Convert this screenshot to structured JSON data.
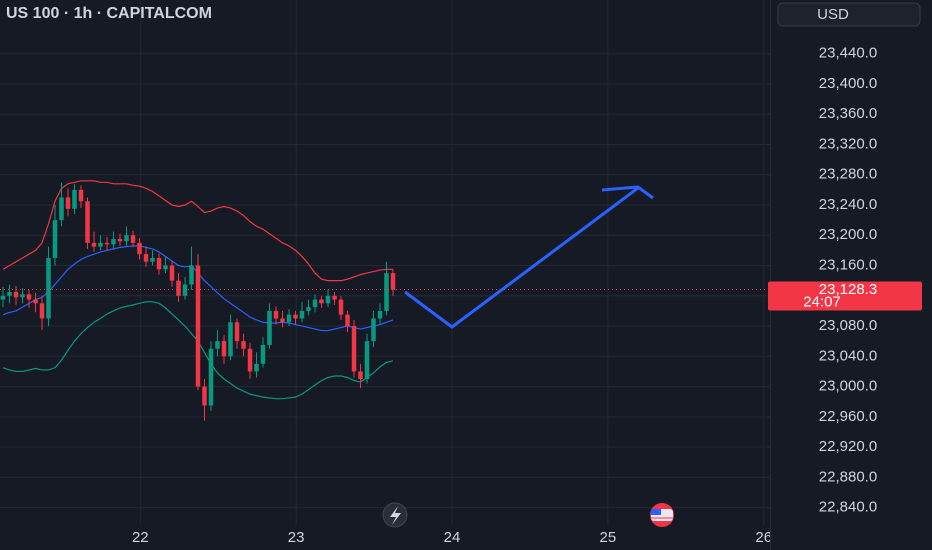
{
  "chart_data": {
    "type": "candlestick",
    "title": "US 100 · 1h · CAPITALCOM",
    "currency": "USD",
    "open": [
      23115,
      23120,
      23125,
      23118,
      23122,
      23115,
      23110,
      23090,
      23170,
      23220,
      23250,
      23235,
      23260,
      23245,
      23190,
      23185,
      23190,
      23188,
      23195,
      23192,
      23200,
      23190,
      23175,
      23165,
      23170,
      23155,
      23160,
      23140,
      23120,
      23135,
      23160,
      23000,
      22975,
      23050,
      23060,
      23040,
      23085,
      23060,
      23050,
      23020,
      23030,
      23055,
      23100,
      23090,
      23085,
      23095,
      23090,
      23100,
      23105,
      23115,
      23110,
      23120,
      23115,
      23095,
      23080,
      23020,
      23010,
      23060,
      23090,
      23100,
      23150
    ],
    "high": [
      23132,
      23135,
      23133,
      23130,
      23128,
      23124,
      23120,
      23185,
      23240,
      23270,
      23262,
      23268,
      23266,
      23250,
      23205,
      23200,
      23198,
      23205,
      23202,
      23212,
      23206,
      23196,
      23185,
      23180,
      23176,
      23172,
      23166,
      23150,
      23145,
      23185,
      23175,
      23010,
      23060,
      23075,
      23068,
      23095,
      23090,
      23070,
      23058,
      23045,
      23065,
      23110,
      23106,
      23100,
      23102,
      23100,
      23112,
      23115,
      23122,
      23120,
      23128,
      23125,
      23120,
      23100,
      23088,
      23030,
      23070,
      23100,
      23110,
      23165,
      23155
    ],
    "low": [
      23105,
      23110,
      23108,
      23110,
      23104,
      23098,
      23075,
      23080,
      23160,
      23212,
      23225,
      23228,
      23236,
      23182,
      23178,
      23180,
      23180,
      23182,
      23186,
      23185,
      23184,
      23168,
      23158,
      23160,
      23148,
      23150,
      23132,
      23112,
      23115,
      23128,
      22995,
      22955,
      22968,
      23040,
      23030,
      23035,
      23050,
      23040,
      23010,
      23012,
      23025,
      23050,
      23082,
      23078,
      23080,
      23082,
      23085,
      23094,
      23098,
      23104,
      23105,
      23108,
      23088,
      23072,
      23012,
      22998,
      23004,
      23052,
      23082,
      23094,
      23120
    ],
    "close": [
      23120,
      23125,
      23118,
      23122,
      23115,
      23110,
      23090,
      23170,
      23220,
      23250,
      23235,
      23260,
      23245,
      23190,
      23185,
      23190,
      23188,
      23195,
      23192,
      23200,
      23190,
      23175,
      23165,
      23170,
      23155,
      23160,
      23140,
      23120,
      23135,
      23160,
      23000,
      22975,
      23050,
      23060,
      23040,
      23085,
      23060,
      23050,
      23020,
      23030,
      23055,
      23100,
      23090,
      23085,
      23095,
      23090,
      23100,
      23105,
      23115,
      23110,
      23120,
      23115,
      23095,
      23080,
      23020,
      23010,
      23060,
      23090,
      23100,
      23150,
      23128
    ],
    "up_color": "#089981",
    "down_color": "#f23645",
    "series": [
      {
        "color": "#f23645",
        "values": [
          23155,
          23160,
          23165,
          23170,
          23175,
          23180,
          23190,
          23215,
          23245,
          23262,
          23268,
          23270,
          23272,
          23272,
          23272,
          23270,
          23270,
          23268,
          23268,
          23268,
          23266,
          23265,
          23262,
          23258,
          23252,
          23246,
          23240,
          23238,
          23240,
          23245,
          23238,
          23230,
          23232,
          23236,
          23238,
          23236,
          23232,
          23226,
          23218,
          23212,
          23208,
          23202,
          23196,
          23190,
          23186,
          23180,
          23172,
          23162,
          23150,
          23142,
          23140,
          23140,
          23140,
          23142,
          23145,
          23148,
          23150,
          23152,
          23154,
          23155,
          23155
        ]
      },
      {
        "color": "#2962ff",
        "values": [
          23095,
          23098,
          23100,
          23105,
          23110,
          23115,
          23118,
          23125,
          23135,
          23145,
          23155,
          23162,
          23168,
          23172,
          23175,
          23178,
          23180,
          23182,
          23184,
          23185,
          23186,
          23186,
          23184,
          23182,
          23178,
          23172,
          23166,
          23160,
          23158,
          23160,
          23150,
          23140,
          23132,
          23124,
          23116,
          23110,
          23104,
          23098,
          23092,
          23088,
          23085,
          23084,
          23084,
          23085,
          23084,
          23082,
          23080,
          23078,
          23076,
          23074,
          23074,
          23076,
          23078,
          23080,
          23078,
          23076,
          23078,
          23080,
          23082,
          23085,
          23088
        ]
      },
      {
        "color": "#089981",
        "values": [
          23025,
          23022,
          23020,
          23020,
          23022,
          23024,
          23022,
          23022,
          23025,
          23035,
          23048,
          23060,
          23070,
          23078,
          23085,
          23090,
          23096,
          23100,
          23104,
          23106,
          23108,
          23110,
          23112,
          23112,
          23110,
          23104,
          23096,
          23088,
          23080,
          23070,
          23060,
          23045,
          23030,
          23018,
          23010,
          23004,
          22998,
          22994,
          22990,
          22988,
          22986,
          22985,
          22984,
          22984,
          22985,
          22986,
          22990,
          22996,
          23002,
          23008,
          23012,
          23014,
          23014,
          23012,
          23008,
          23006,
          23012,
          23018,
          23026,
          23032,
          23034
        ]
      }
    ],
    "last_price": {
      "value": 23128.3,
      "label": "23,128.3"
    },
    "countdown": "24:07",
    "ylim": [
      22817,
      23511
    ],
    "yticks": [
      {
        "value": 23440,
        "label": "23,440.0"
      },
      {
        "value": 23400,
        "label": "23,400.0"
      },
      {
        "value": 23360,
        "label": "23,360.0"
      },
      {
        "value": 23320,
        "label": "23,320.0"
      },
      {
        "value": 23280,
        "label": "23,280.0"
      },
      {
        "value": 23240,
        "label": "23,240.0"
      },
      {
        "value": 23200,
        "label": "23,200.0"
      },
      {
        "value": 23160,
        "label": "23,160.0"
      },
      {
        "value": 23120,
        "label": "23,120.0"
      },
      {
        "value": 23080,
        "label": "23,080.0"
      },
      {
        "value": 23040,
        "label": "23,040.0"
      },
      {
        "value": 23000,
        "label": "23,000.0"
      },
      {
        "value": 22960,
        "label": "22,960.0"
      },
      {
        "value": 22920,
        "label": "22,920.0"
      },
      {
        "value": 22880,
        "label": "22,880.0"
      },
      {
        "value": 22840,
        "label": "22,840.0"
      }
    ],
    "xlim": [
      21.1,
      26.04
    ],
    "xticks": [
      22,
      23,
      24,
      25,
      26
    ],
    "grid": true
  }
}
